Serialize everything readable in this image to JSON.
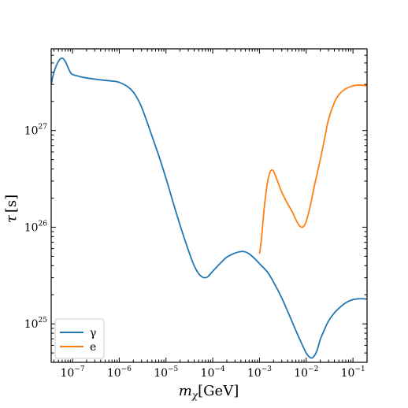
{
  "chart_data": {
    "type": "line",
    "title": "",
    "xlabel": "m_χ[GeV]",
    "ylabel": "τ [s]",
    "xscale": "log",
    "yscale": "log",
    "xlim": [
      3.5e-08,
      0.2
    ],
    "ylim": [
      4e+24,
      7e+27
    ],
    "x_ticks": [
      {
        "value": 1e-07,
        "base": "10",
        "exp": "−7"
      },
      {
        "value": 1e-06,
        "base": "10",
        "exp": "−6"
      },
      {
        "value": 1e-05,
        "base": "10",
        "exp": "−5"
      },
      {
        "value": 0.0001,
        "base": "10",
        "exp": "−4"
      },
      {
        "value": 0.001,
        "base": "10",
        "exp": "−3"
      },
      {
        "value": 0.01,
        "base": "10",
        "exp": "−2"
      },
      {
        "value": 0.1,
        "base": "10",
        "exp": "−1"
      }
    ],
    "y_ticks": [
      {
        "value": 1e+25,
        "base": "10",
        "exp": "25"
      },
      {
        "value": 1e+26,
        "base": "10",
        "exp": "26"
      },
      {
        "value": 1e+27,
        "base": "10",
        "exp": "27"
      }
    ],
    "grid": false,
    "legend_position": "bottom-left",
    "series": [
      {
        "name": "γ",
        "color": "#1f77b4",
        "points": [
          [
            3.5e-08,
            3e+27
          ],
          [
            4e-08,
            4e+27
          ],
          [
            5e-08,
            5.2e+27
          ],
          [
            6e-08,
            5.6e+27
          ],
          [
            7e-08,
            5.2e+27
          ],
          [
            8e-08,
            4.5e+27
          ],
          [
            9e-08,
            4e+27
          ],
          [
            1e-07,
            3.8e+27
          ],
          [
            1.5e-07,
            3.6e+27
          ],
          [
            2e-07,
            3.5e+27
          ],
          [
            3e-07,
            3.4e+27
          ],
          [
            5e-07,
            3.3e+27
          ],
          [
            7e-07,
            3.25e+27
          ],
          [
            1e-06,
            3.15e+27
          ],
          [
            1.5e-06,
            2.85e+27
          ],
          [
            2e-06,
            2.5e+27
          ],
          [
            2.5e-06,
            2.1e+27
          ],
          [
            3e-06,
            1.75e+27
          ],
          [
            4e-06,
            1.2e+27
          ],
          [
            5e-06,
            8.8e+26
          ],
          [
            7e-06,
            5.5e+26
          ],
          [
            1e-05,
            3.2e+26
          ],
          [
            1.5e-05,
            1.65e+26
          ],
          [
            2e-05,
            1.05e+26
          ],
          [
            3e-05,
            5.8e+25
          ],
          [
            4e-05,
            4e+25
          ],
          [
            5e-05,
            3.3e+25
          ],
          [
            6e-05,
            3.05e+25
          ],
          [
            7e-05,
            3e+25
          ],
          [
            8e-05,
            3.1e+25
          ],
          [
            0.0001,
            3.5e+25
          ],
          [
            0.00015,
            4.3e+25
          ],
          [
            0.0002,
            4.9e+25
          ],
          [
            0.0003,
            5.4e+25
          ],
          [
            0.0004,
            5.6e+25
          ],
          [
            0.0005,
            5.55e+25
          ],
          [
            0.0006,
            5.3e+25
          ],
          [
            0.0008,
            4.7e+25
          ],
          [
            0.001,
            4.2e+25
          ],
          [
            0.0015,
            3.4e+25
          ],
          [
            0.002,
            2.7e+25
          ],
          [
            0.003,
            1.85e+25
          ],
          [
            0.004,
            1.35e+25
          ],
          [
            0.005,
            1.05e+25
          ],
          [
            0.007,
            7.2e+24
          ],
          [
            0.01,
            5e+24
          ],
          [
            0.012,
            4.5e+24
          ],
          [
            0.014,
            4.5e+24
          ],
          [
            0.017,
            5.3e+24
          ],
          [
            0.02,
            6.9e+24
          ],
          [
            0.025,
            8.9e+24
          ],
          [
            0.03,
            1.07e+25
          ],
          [
            0.04,
            1.3e+25
          ],
          [
            0.05,
            1.45e+25
          ],
          [
            0.07,
            1.65e+25
          ],
          [
            0.1,
            1.78e+25
          ],
          [
            0.15,
            1.82e+25
          ],
          [
            0.2,
            1.8e+25
          ]
        ]
      },
      {
        "name": "e",
        "color": "#ff7f0e",
        "points": [
          [
            0.001,
            5.3e+25
          ],
          [
            0.0011,
            7.5e+25
          ],
          [
            0.0012,
            1.2e+26
          ],
          [
            0.0013,
            1.8e+26
          ],
          [
            0.0015,
            3e+26
          ],
          [
            0.0017,
            3.75e+26
          ],
          [
            0.0019,
            3.9e+26
          ],
          [
            0.0021,
            3.6e+26
          ],
          [
            0.0025,
            2.9e+26
          ],
          [
            0.003,
            2.3e+26
          ],
          [
            0.004,
            1.75e+26
          ],
          [
            0.005,
            1.45e+26
          ],
          [
            0.006,
            1.2e+26
          ],
          [
            0.007,
            1.05e+26
          ],
          [
            0.008,
            1e+26
          ],
          [
            0.009,
            1.03e+26
          ],
          [
            0.01,
            1.15e+26
          ],
          [
            0.012,
            1.6e+26
          ],
          [
            0.015,
            2.7e+26
          ],
          [
            0.02,
            5e+26
          ],
          [
            0.025,
            8.5e+26
          ],
          [
            0.03,
            1.3e+27
          ],
          [
            0.04,
            1.95e+27
          ],
          [
            0.05,
            2.35e+27
          ],
          [
            0.07,
            2.7e+27
          ],
          [
            0.1,
            2.9e+27
          ],
          [
            0.14,
            2.95e+27
          ],
          [
            0.2,
            2.9e+27
          ]
        ]
      }
    ]
  }
}
